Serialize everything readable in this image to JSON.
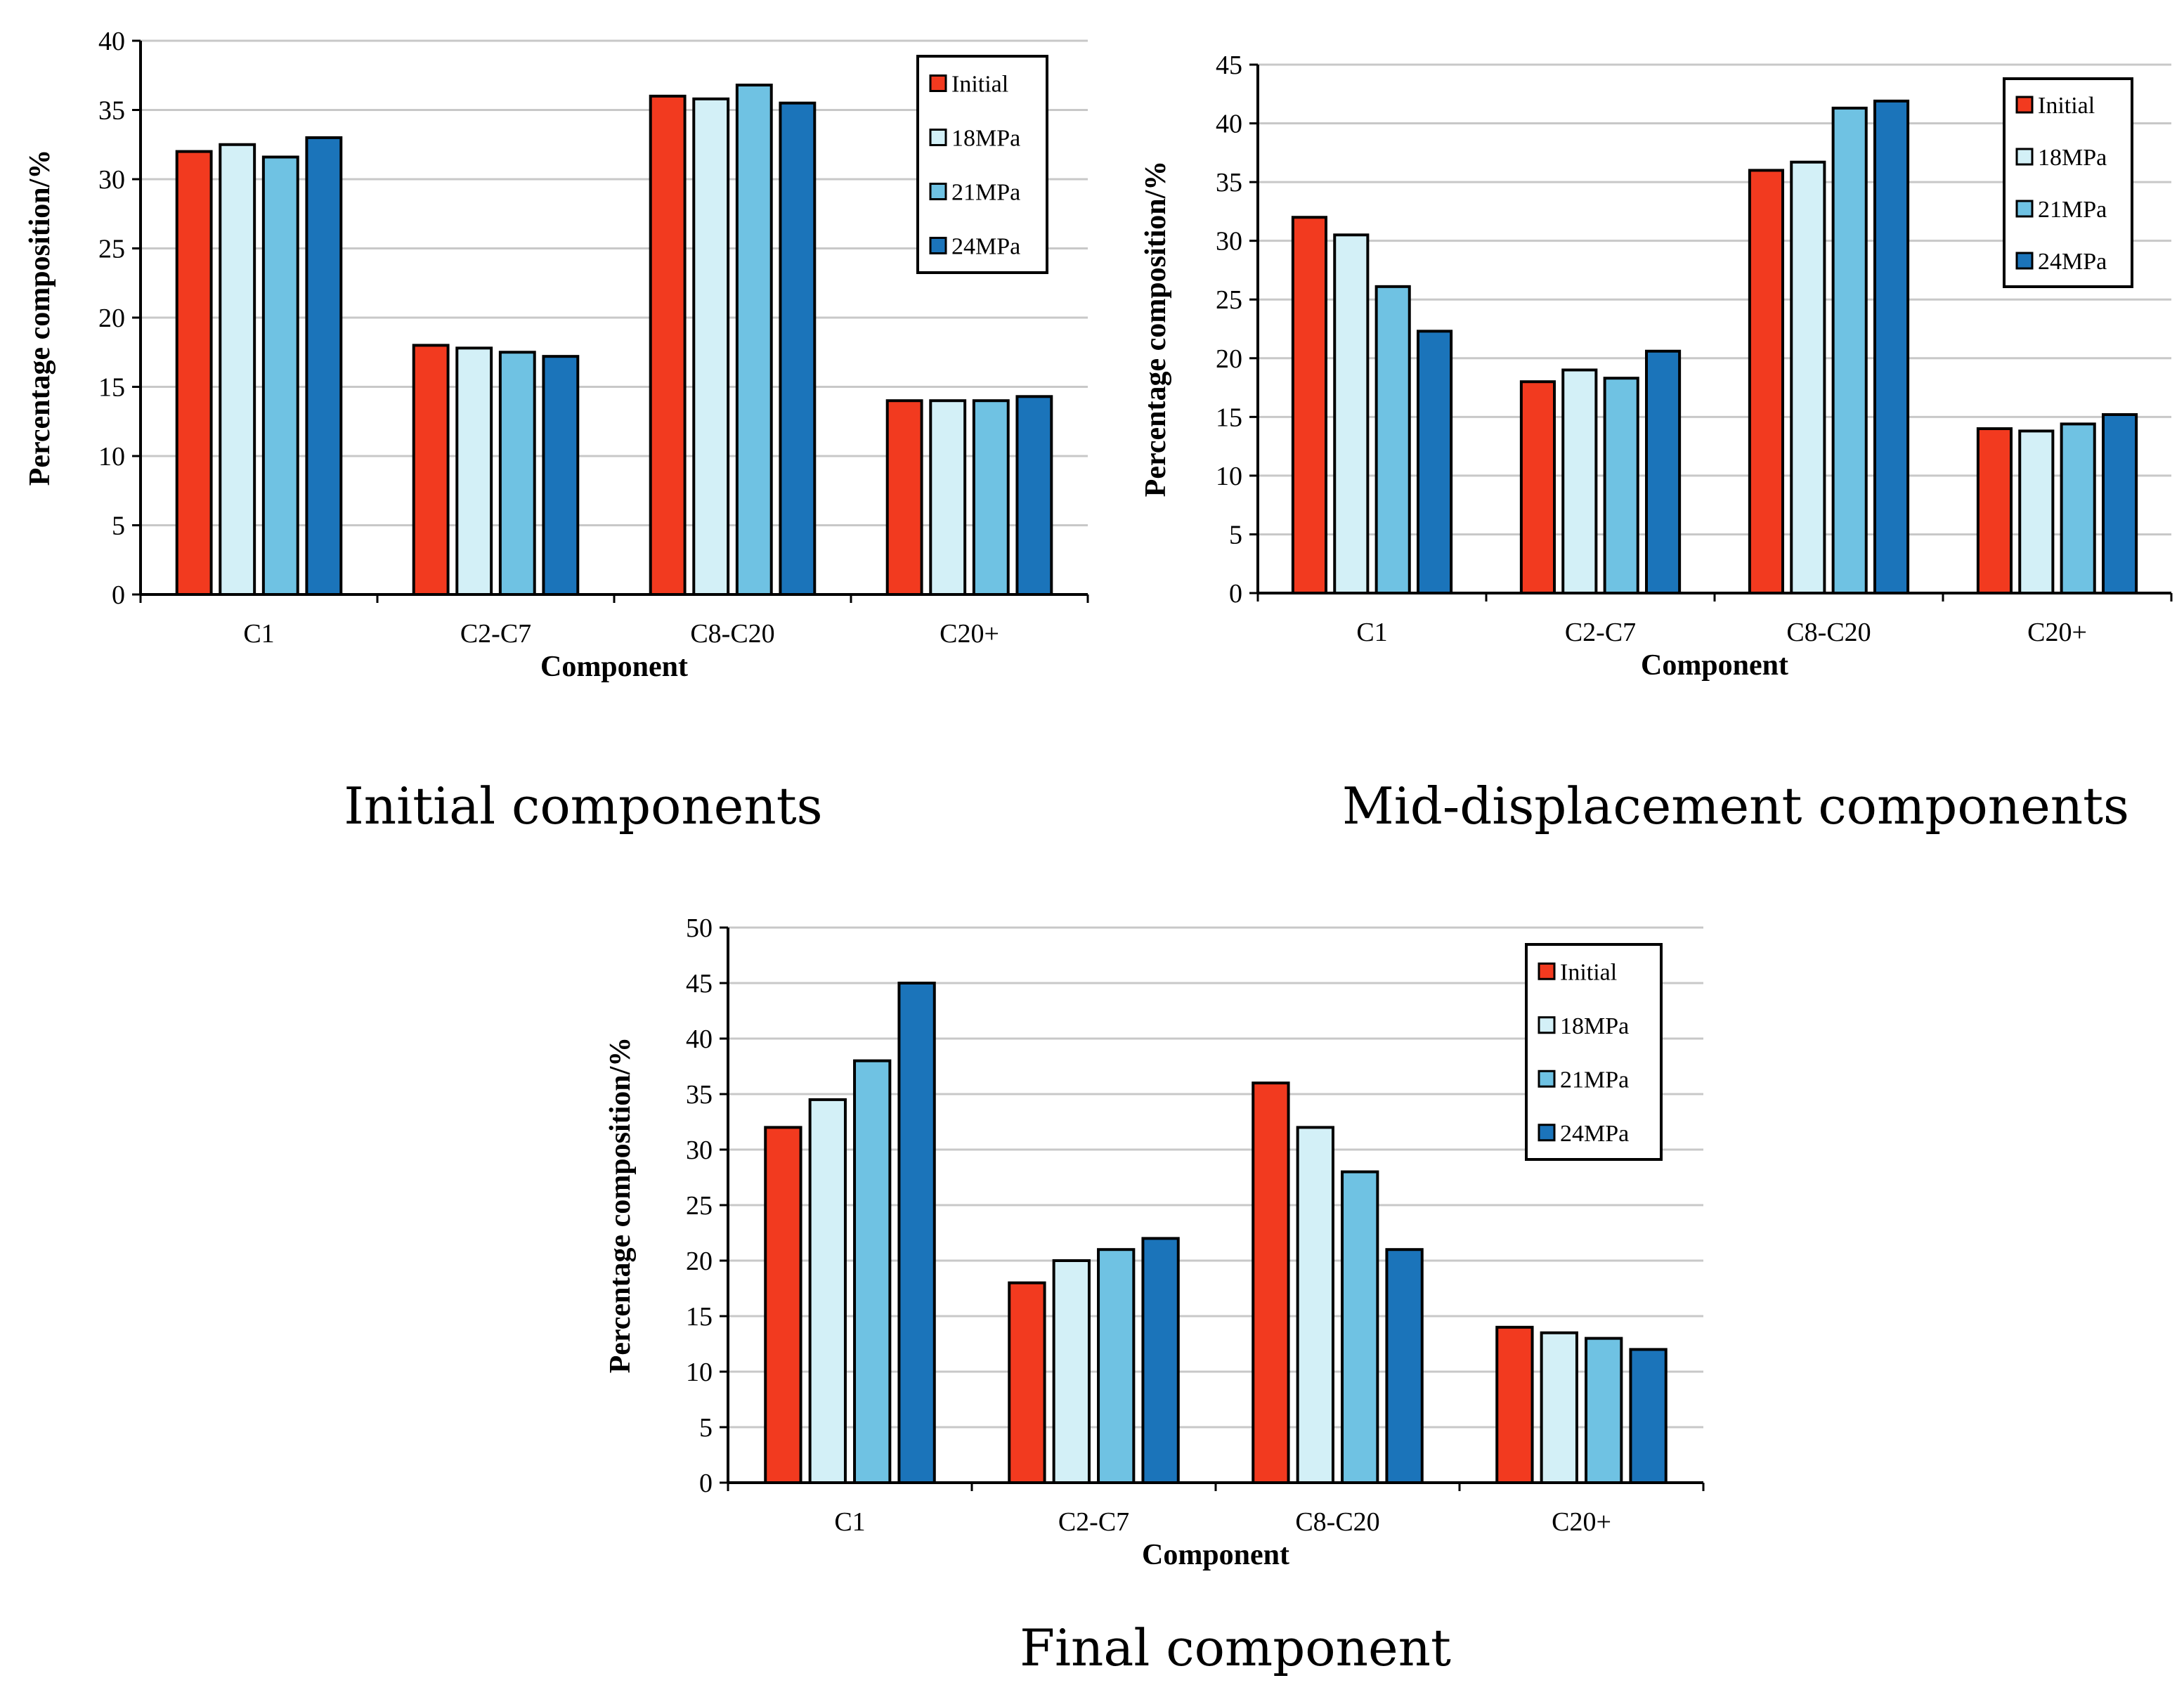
{
  "chart_data": [
    {
      "type": "bar",
      "title": "Initial components",
      "xlabel": "Component",
      "ylabel": "Percentage composition/%",
      "ylim": [
        0,
        40
      ],
      "ytick_step": 5,
      "grid": true,
      "legend_position": "top-right",
      "categories": [
        "C1",
        "C2-C7",
        "C8-C20",
        "C20+"
      ],
      "series": [
        {
          "name": "Initial",
          "color": "#f23a1f",
          "values": [
            32.0,
            18.0,
            36.0,
            14.0
          ]
        },
        {
          "name": "18MPa",
          "color": "#d3f0f7",
          "values": [
            32.5,
            17.8,
            35.8,
            14.0
          ]
        },
        {
          "name": "21MPa",
          "color": "#6fc2e3",
          "values": [
            31.6,
            17.5,
            36.8,
            14.0
          ]
        },
        {
          "name": "24MPa",
          "color": "#1b74ba",
          "values": [
            33.0,
            17.2,
            35.5,
            14.3
          ]
        }
      ]
    },
    {
      "type": "bar",
      "title": "Mid-displacement components",
      "xlabel": "Component",
      "ylabel": "Percentage composition/%",
      "ylim": [
        0,
        45
      ],
      "ytick_step": 5,
      "grid": true,
      "legend_position": "top-right",
      "categories": [
        "C1",
        "C2-C7",
        "C8-C20",
        "C20+"
      ],
      "series": [
        {
          "name": "Initial",
          "color": "#f23a1f",
          "values": [
            32.0,
            18.0,
            36.0,
            14.0
          ]
        },
        {
          "name": "18MPa",
          "color": "#d3f0f7",
          "values": [
            30.5,
            19.0,
            36.7,
            13.8
          ]
        },
        {
          "name": "21MPa",
          "color": "#6fc2e3",
          "values": [
            26.1,
            18.3,
            41.3,
            14.4
          ]
        },
        {
          "name": "24MPa",
          "color": "#1b74ba",
          "values": [
            22.3,
            20.6,
            41.9,
            15.2
          ]
        }
      ]
    },
    {
      "type": "bar",
      "title": "Final component",
      "xlabel": "Component",
      "ylabel": "Percentage composition/%",
      "ylim": [
        0,
        50
      ],
      "ytick_step": 5,
      "grid": true,
      "legend_position": "top-right",
      "categories": [
        "C1",
        "C2-C7",
        "C8-C20",
        "C20+"
      ],
      "series": [
        {
          "name": "Initial",
          "color": "#f23a1f",
          "values": [
            32.0,
            18.0,
            36.0,
            14.0
          ]
        },
        {
          "name": "18MPa",
          "color": "#d3f0f7",
          "values": [
            34.5,
            20.0,
            32.0,
            13.5
          ]
        },
        {
          "name": "21MPa",
          "color": "#6fc2e3",
          "values": [
            38.0,
            21.0,
            28.0,
            13.0
          ]
        },
        {
          "name": "24MPa",
          "color": "#1b74ba",
          "values": [
            45.0,
            22.0,
            21.0,
            12.0
          ]
        }
      ]
    }
  ]
}
